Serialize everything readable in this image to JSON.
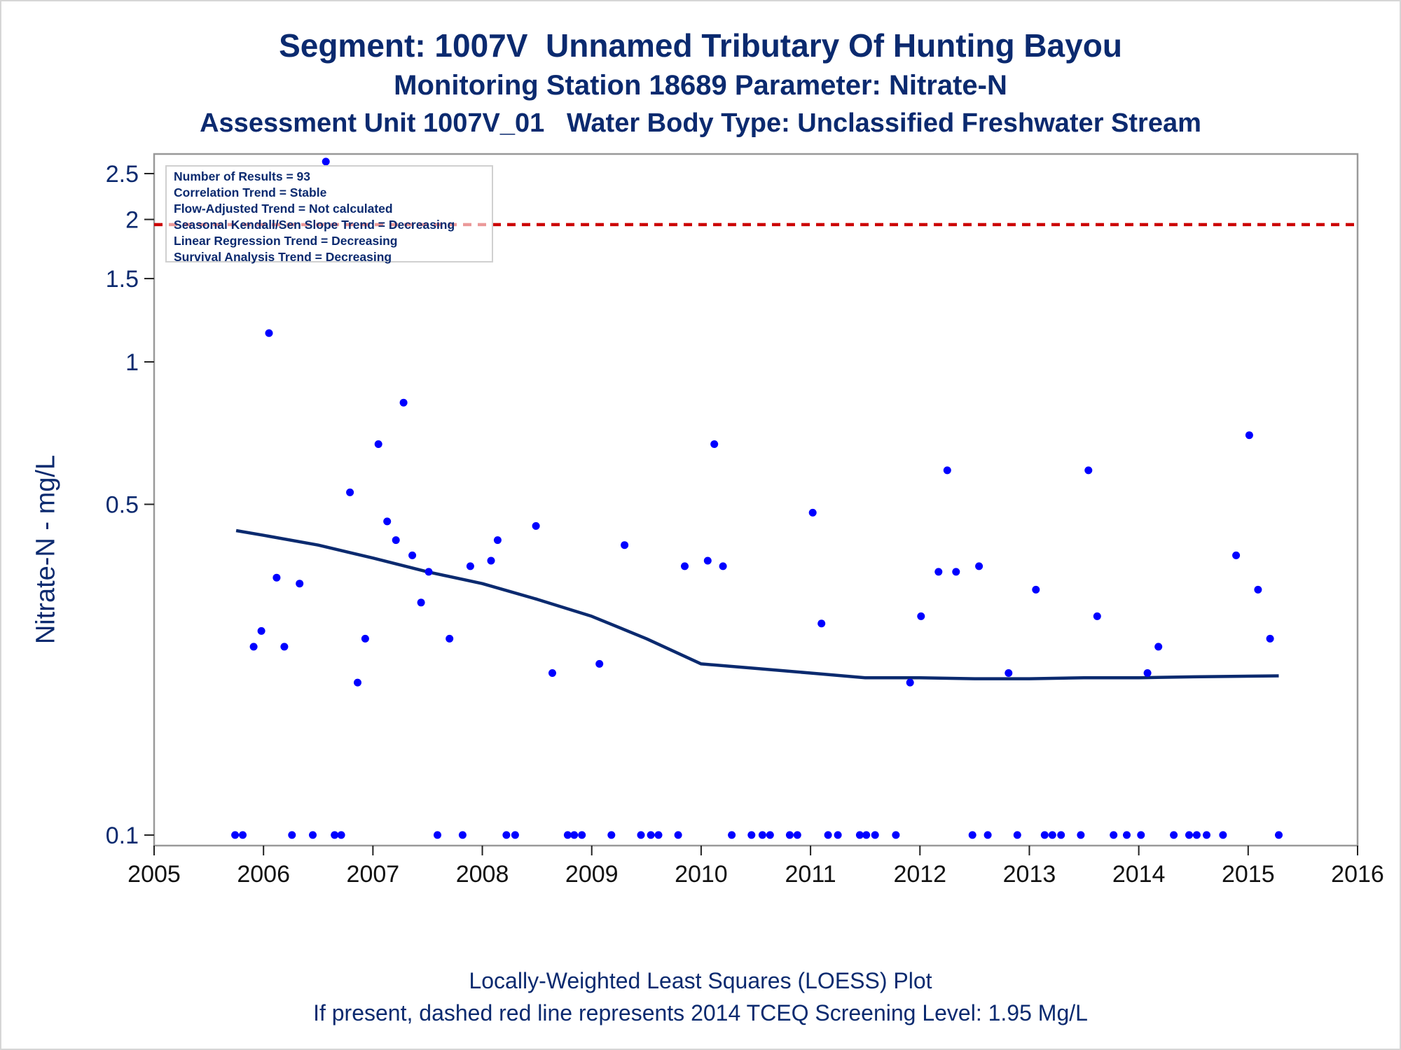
{
  "title_line1": "Segment: 1007V  Unnamed Tributary Of Hunting Bayou",
  "title_line2": "Monitoring Station 18689 Parameter: Nitrate-N",
  "title_line3": "Assessment Unit 1007V_01   Water Body Type: Unclassified Freshwater Stream",
  "footnote_line1": "Locally-Weighted Least Squares (LOESS) Plot",
  "footnote_line2": "If present, dashed red line represents 2014 TCEQ Screening Level: 1.95 Mg/L",
  "stats_box": [
    "Number of Results = 93",
    "Correlation Trend = Stable",
    "Flow-Adjusted Trend = Not calculated",
    "Seasonal Kendall/Sen Slope Trend = Decreasing",
    "Linear Regression Trend = Decreasing",
    "Survival Analysis Trend = Decreasing"
  ],
  "colors": {
    "text": "#0b2a6f",
    "points": "#0000ff",
    "loess": "#0b2a6f",
    "screening_line": "#cc0000",
    "frame": "#999999"
  },
  "chart_data": {
    "type": "scatter",
    "ylabel": "Nitrate-N - mg/L",
    "xlabel": "",
    "y_scale": "log",
    "xlim": [
      2005,
      2016
    ],
    "ylim": [
      0.095,
      2.75
    ],
    "x_ticks": [
      "2005",
      "2006",
      "2007",
      "2008",
      "2009",
      "2010",
      "2011",
      "2012",
      "2013",
      "2014",
      "2015",
      "2016"
    ],
    "y_ticks": [
      "0.1",
      "0.5",
      "1",
      "1.5",
      "2",
      "2.5"
    ],
    "grid": false,
    "screening_level": 1.95,
    "series": [
      {
        "kind": "points",
        "points": [
          [
            2005.74,
            0.1
          ],
          [
            2005.81,
            0.1
          ],
          [
            2005.91,
            0.25
          ],
          [
            2005.98,
            0.27
          ],
          [
            2006.05,
            1.15
          ],
          [
            2006.12,
            0.35
          ],
          [
            2006.19,
            0.25
          ],
          [
            2006.26,
            0.1
          ],
          [
            2006.33,
            0.34
          ],
          [
            2006.45,
            0.1
          ],
          [
            2006.57,
            2.65
          ],
          [
            2006.65,
            0.1
          ],
          [
            2006.71,
            0.1
          ],
          [
            2006.79,
            0.53
          ],
          [
            2006.86,
            0.21
          ],
          [
            2006.93,
            0.26
          ],
          [
            2007.05,
            0.67
          ],
          [
            2007.13,
            0.46
          ],
          [
            2007.21,
            0.42
          ],
          [
            2007.28,
            0.82
          ],
          [
            2007.36,
            0.39
          ],
          [
            2007.44,
            0.31
          ],
          [
            2007.51,
            0.36
          ],
          [
            2007.59,
            0.1
          ],
          [
            2007.7,
            0.26
          ],
          [
            2007.82,
            0.1
          ],
          [
            2007.89,
            0.37
          ],
          [
            2008.08,
            0.38
          ],
          [
            2008.14,
            0.42
          ],
          [
            2008.22,
            0.1
          ],
          [
            2008.3,
            0.1
          ],
          [
            2008.49,
            0.45
          ],
          [
            2008.64,
            0.22
          ],
          [
            2008.78,
            0.1
          ],
          [
            2008.84,
            0.1
          ],
          [
            2008.91,
            0.1
          ],
          [
            2009.07,
            0.23
          ],
          [
            2009.18,
            0.1
          ],
          [
            2009.3,
            0.41
          ],
          [
            2009.45,
            0.1
          ],
          [
            2009.54,
            0.1
          ],
          [
            2009.61,
            0.1
          ],
          [
            2009.79,
            0.1
          ],
          [
            2009.85,
            0.37
          ],
          [
            2010.06,
            0.38
          ],
          [
            2010.12,
            0.67
          ],
          [
            2010.2,
            0.37
          ],
          [
            2010.28,
            0.1
          ],
          [
            2010.46,
            0.1
          ],
          [
            2010.56,
            0.1
          ],
          [
            2010.63,
            0.1
          ],
          [
            2010.81,
            0.1
          ],
          [
            2010.88,
            0.1
          ],
          [
            2011.02,
            0.48
          ],
          [
            2011.1,
            0.28
          ],
          [
            2011.16,
            0.1
          ],
          [
            2011.25,
            0.1
          ],
          [
            2011.45,
            0.1
          ],
          [
            2011.51,
            0.1
          ],
          [
            2011.59,
            0.1
          ],
          [
            2011.78,
            0.1
          ],
          [
            2011.91,
            0.21
          ],
          [
            2012.01,
            0.29
          ],
          [
            2012.17,
            0.36
          ],
          [
            2012.25,
            0.59
          ],
          [
            2012.33,
            0.36
          ],
          [
            2012.48,
            0.1
          ],
          [
            2012.54,
            0.37
          ],
          [
            2012.62,
            0.1
          ],
          [
            2012.81,
            0.22
          ],
          [
            2012.89,
            0.1
          ],
          [
            2013.06,
            0.33
          ],
          [
            2013.14,
            0.1
          ],
          [
            2013.21,
            0.1
          ],
          [
            2013.29,
            0.1
          ],
          [
            2013.47,
            0.1
          ],
          [
            2013.54,
            0.59
          ],
          [
            2013.62,
            0.29
          ],
          [
            2013.77,
            0.1
          ],
          [
            2013.89,
            0.1
          ],
          [
            2014.02,
            0.1
          ],
          [
            2014.08,
            0.22
          ],
          [
            2014.18,
            0.25
          ],
          [
            2014.32,
            0.1
          ],
          [
            2014.46,
            0.1
          ],
          [
            2014.53,
            0.1
          ],
          [
            2014.62,
            0.1
          ],
          [
            2014.77,
            0.1
          ],
          [
            2014.89,
            0.39
          ],
          [
            2015.01,
            0.7
          ],
          [
            2015.09,
            0.33
          ],
          [
            2015.2,
            0.26
          ],
          [
            2015.28,
            0.1
          ]
        ]
      },
      {
        "kind": "loess",
        "points": [
          [
            2005.75,
            0.44
          ],
          [
            2006.0,
            0.43
          ],
          [
            2006.5,
            0.41
          ],
          [
            2007.0,
            0.385
          ],
          [
            2007.5,
            0.36
          ],
          [
            2008.0,
            0.34
          ],
          [
            2008.5,
            0.315
          ],
          [
            2009.0,
            0.29
          ],
          [
            2009.5,
            0.26
          ],
          [
            2010.0,
            0.23
          ],
          [
            2010.5,
            0.225
          ],
          [
            2011.0,
            0.22
          ],
          [
            2011.5,
            0.215
          ],
          [
            2012.0,
            0.215
          ],
          [
            2012.5,
            0.214
          ],
          [
            2013.0,
            0.214
          ],
          [
            2013.5,
            0.215
          ],
          [
            2014.0,
            0.215
          ],
          [
            2014.5,
            0.216
          ],
          [
            2015.28,
            0.217
          ]
        ]
      }
    ]
  }
}
